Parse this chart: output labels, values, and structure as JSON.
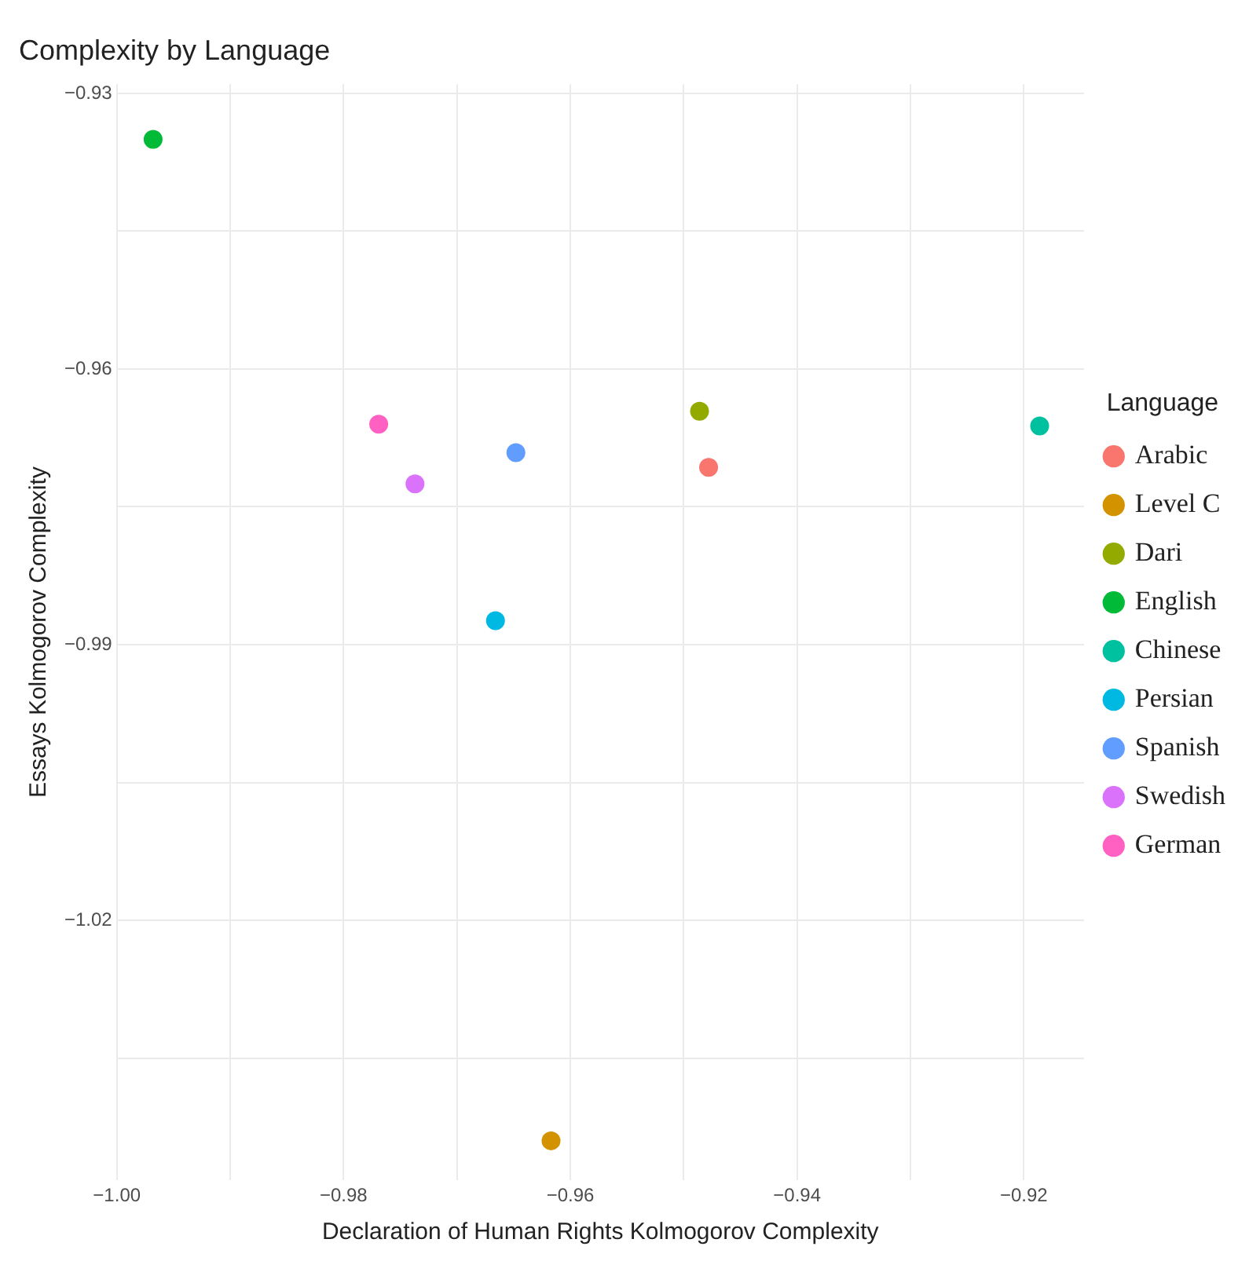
{
  "chart_data": {
    "type": "scatter",
    "title": "Complexity by Language",
    "xlabel": "Declaration of Human Rights Kolmogorov Complexity",
    "ylabel": "Essays Kolmogorov Complexity",
    "legend_title": "Language",
    "legend": "right",
    "grid": true,
    "marker": "circle",
    "xlim": [
      -1.0,
      -0.9147
    ],
    "ylim": [
      -1.0483,
      -0.929
    ],
    "xticks": [
      {
        "value": -1.0,
        "label": "−1.00"
      },
      {
        "value": -0.99,
        "label": null
      },
      {
        "value": -0.98,
        "label": "−0.98"
      },
      {
        "value": -0.97,
        "label": null
      },
      {
        "value": -0.96,
        "label": "−0.96"
      },
      {
        "value": -0.95,
        "label": null
      },
      {
        "value": -0.94,
        "label": "−0.94"
      },
      {
        "value": -0.93,
        "label": null
      },
      {
        "value": -0.92,
        "label": "−0.92"
      }
    ],
    "yticks": [
      {
        "value": -1.035,
        "label": null
      },
      {
        "value": -1.02,
        "label": "−1.02"
      },
      {
        "value": -1.005,
        "label": null
      },
      {
        "value": -0.99,
        "label": "−0.99"
      },
      {
        "value": -0.975,
        "label": null
      },
      {
        "value": -0.96,
        "label": "−0.96"
      },
      {
        "value": -0.945,
        "label": null
      },
      {
        "value": -0.93,
        "label": "−0.93"
      }
    ],
    "series": [
      {
        "name": "Arabic",
        "color": "#f8766d",
        "x": [
          -0.9478
        ],
        "values": [
          -0.9707
        ]
      },
      {
        "name": "Level C",
        "color": "#d39200",
        "x": [
          -0.9617
        ],
        "values": [
          -1.044
        ]
      },
      {
        "name": "Dari",
        "color": "#93aa00",
        "x": [
          -0.9486
        ],
        "values": [
          -0.9646
        ]
      },
      {
        "name": "English",
        "color": "#00ba38",
        "x": [
          -0.9968
        ],
        "values": [
          -0.935
        ]
      },
      {
        "name": "Chinese",
        "color": "#00c19f",
        "x": [
          -0.9186
        ],
        "values": [
          -0.9662
        ]
      },
      {
        "name": "Persian",
        "color": "#00b9e3",
        "x": [
          -0.9666
        ],
        "values": [
          -0.9874
        ]
      },
      {
        "name": "Spanish",
        "color": "#619cff",
        "x": [
          -0.9648
        ],
        "values": [
          -0.9691
        ]
      },
      {
        "name": "Swedish",
        "color": "#db72fb",
        "x": [
          -0.9737
        ],
        "values": [
          -0.9725
        ]
      },
      {
        "name": "German",
        "color": "#ff61c3",
        "x": [
          -0.9769
        ],
        "values": [
          -0.966
        ]
      }
    ]
  }
}
